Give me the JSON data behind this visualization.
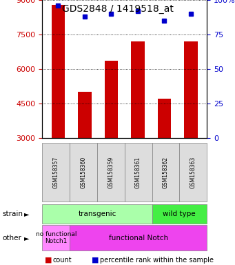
{
  "title": "GDS2848 / 1419518_at",
  "samples": [
    "GSM158357",
    "GSM158360",
    "GSM158359",
    "GSM158361",
    "GSM158362",
    "GSM158363"
  ],
  "counts": [
    8800,
    5000,
    6350,
    7200,
    4700,
    7200
  ],
  "percentiles": [
    96,
    88,
    90,
    92,
    85,
    90
  ],
  "ylim_left": [
    3000,
    9000
  ],
  "ylim_right": [
    0,
    100
  ],
  "yticks_left": [
    3000,
    4500,
    6000,
    7500,
    9000
  ],
  "yticks_right": [
    0,
    25,
    50,
    75,
    100
  ],
  "bar_color": "#cc0000",
  "dot_color": "#0000cc",
  "color_transgenic_light": "#aaffaa",
  "color_wildtype": "#44ee44",
  "color_nofunc": "#ff88ff",
  "color_func": "#ee44ee",
  "legend_count_color": "#cc0000",
  "legend_dot_color": "#0000cc",
  "bar_base": 3000
}
